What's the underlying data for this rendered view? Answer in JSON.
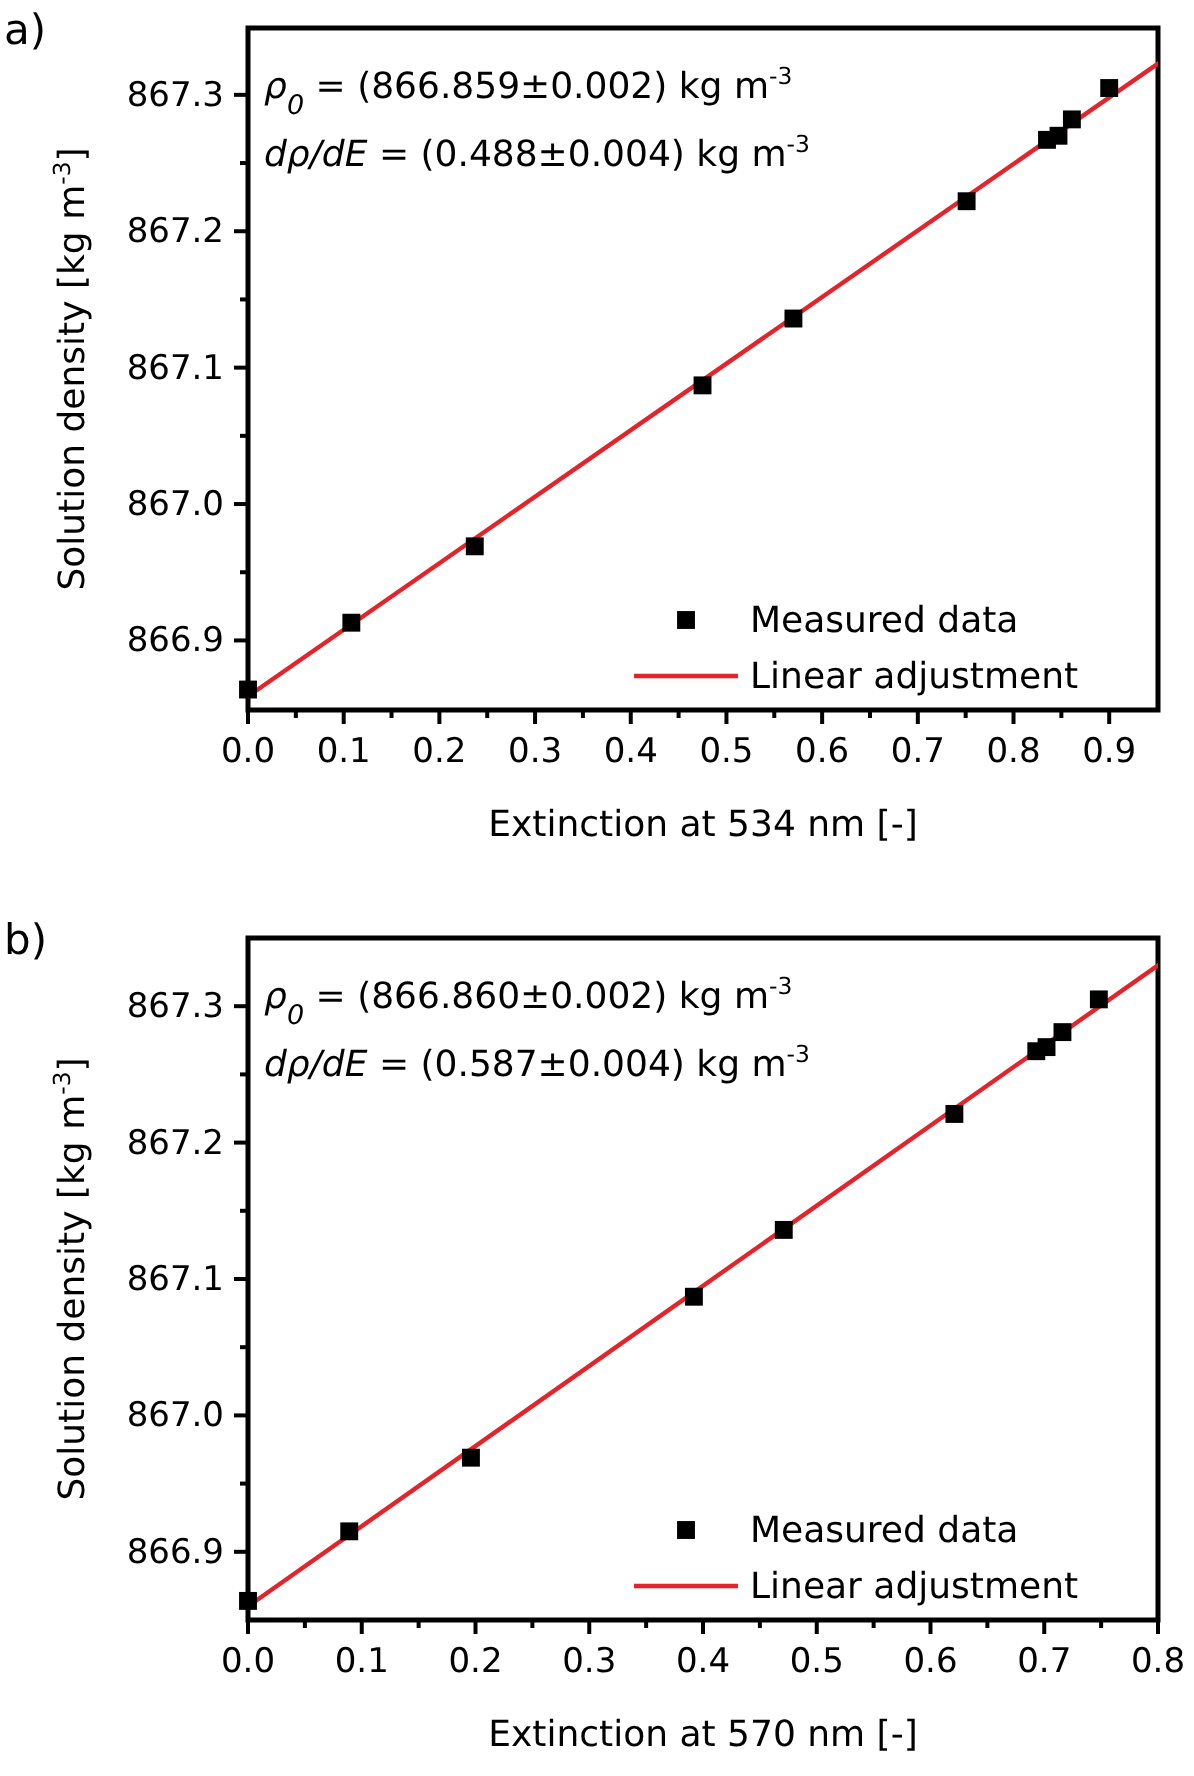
{
  "chart_data": [
    {
      "type": "scatter",
      "title": "a)",
      "xlabel": "Extinction at 534 nm [-]",
      "ylabel": "Solution density [kg m$^{-3}$]",
      "annotations": [
        "ρ$_{0}$ = (866.859±0.002) kg m$^{-3}$",
        "dρ/dE = (0.488±0.004) kg m$^{-3}$"
      ],
      "xlim": [
        0,
        0.951
      ],
      "ylim": [
        866.849,
        867.349
      ],
      "xticks": [
        {
          "value": 0,
          "label": "0.0"
        },
        {
          "value": 0.05,
          "label": null
        },
        {
          "value": 0.1,
          "label": "0.1"
        },
        {
          "value": 0.15,
          "label": null
        },
        {
          "value": 0.2,
          "label": "0.2"
        },
        {
          "value": 0.25,
          "label": null
        },
        {
          "value": 0.3,
          "label": "0.3"
        },
        {
          "value": 0.35,
          "label": null
        },
        {
          "value": 0.4,
          "label": "0.4"
        },
        {
          "value": 0.45,
          "label": null
        },
        {
          "value": 0.5,
          "label": "0.5"
        },
        {
          "value": 0.55,
          "label": null
        },
        {
          "value": 0.6,
          "label": "0.6"
        },
        {
          "value": 0.65,
          "label": null
        },
        {
          "value": 0.7,
          "label": "0.7"
        },
        {
          "value": 0.75,
          "label": null
        },
        {
          "value": 0.8,
          "label": "0.8"
        },
        {
          "value": 0.85,
          "label": null
        },
        {
          "value": 0.9,
          "label": "0.9"
        }
      ],
      "yticks": [
        866.9,
        {
          "value": 866.95,
          "label": null
        },
        {
          "value": 867,
          "label": "867.0"
        },
        {
          "value": 867.05,
          "label": null
        },
        867.1,
        {
          "value": 867.15,
          "label": null
        },
        867.2,
        {
          "value": 867.25,
          "label": null
        },
        867.3
      ],
      "grid": false,
      "legend": "bottom right",
      "line_style": "solid",
      "series": [
        {
          "name": "Measured data",
          "marker": "square",
          "color": "#000000",
          "x": [
            0,
            0.108,
            0.237,
            0.475,
            0.57,
            0.751,
            0.835,
            0.847,
            0.861,
            0.9
          ],
          "values": [
            866.864,
            866.913,
            866.969,
            867.087,
            867.136,
            867.222,
            867.267,
            867.27,
            867.282,
            867.305
          ]
        },
        {
          "type": "line",
          "name": "Linear adjustment",
          "color": "#e3242b",
          "x": [
            0,
            0.951
          ],
          "values": [
            866.859,
            867.323
          ]
        }
      ]
    },
    {
      "type": "scatter",
      "title": "b)",
      "xlabel": "Extinction at 570 nm [-]",
      "ylabel": "Solution density [kg m$^{-3}$]",
      "annotations": [
        "ρ$_{0}$ = (866.860±0.002) kg m$^{-3}$",
        "dρ/dE = (0.587±0.004) kg m$^{-3}$"
      ],
      "xlim": [
        0,
        0.8
      ],
      "ylim": [
        866.85,
        867.35
      ],
      "xticks": [
        {
          "value": 0,
          "label": "0.0"
        },
        {
          "value": 0.05,
          "label": null
        },
        {
          "value": 0.1,
          "label": "0.1"
        },
        {
          "value": 0.15,
          "label": null
        },
        {
          "value": 0.2,
          "label": "0.2"
        },
        {
          "value": 0.25,
          "label": null
        },
        {
          "value": 0.3,
          "label": "0.3"
        },
        {
          "value": 0.35,
          "label": null
        },
        {
          "value": 0.4,
          "label": "0.4"
        },
        {
          "value": 0.45,
          "label": null
        },
        {
          "value": 0.5,
          "label": "0.5"
        },
        {
          "value": 0.55,
          "label": null
        },
        {
          "value": 0.6,
          "label": "0.6"
        },
        {
          "value": 0.65,
          "label": null
        },
        {
          "value": 0.7,
          "label": "0.7"
        },
        {
          "value": 0.75,
          "label": null
        },
        {
          "value": 0.8,
          "label": "0.8"
        }
      ],
      "yticks": [
        866.9,
        {
          "value": 866.95,
          "label": null
        },
        {
          "value": 867,
          "label": "867.0"
        },
        {
          "value": 867.05,
          "label": null
        },
        867.1,
        {
          "value": 867.15,
          "label": null
        },
        867.2,
        {
          "value": 867.25,
          "label": null
        },
        867.3
      ],
      "grid": false,
      "legend": "bottom right",
      "line_style": "solid",
      "series": [
        {
          "name": "Measured data",
          "marker": "square",
          "color": "#000000",
          "x": [
            0,
            0.089,
            0.196,
            0.392,
            0.471,
            0.621,
            0.693,
            0.702,
            0.716,
            0.748
          ],
          "values": [
            866.864,
            866.915,
            866.969,
            867.087,
            867.136,
            867.221,
            867.267,
            867.27,
            867.281,
            867.305
          ]
        },
        {
          "type": "line",
          "name": "Linear adjustment",
          "color": "#e3242b",
          "x": [
            0,
            0.8
          ],
          "values": [
            866.86,
            867.33
          ]
        }
      ]
    }
  ]
}
